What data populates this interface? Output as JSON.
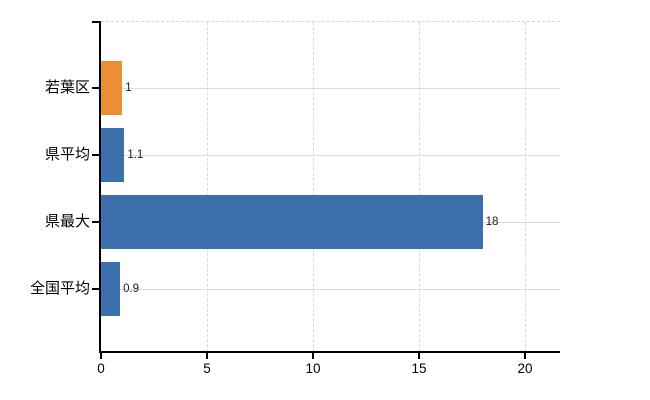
{
  "chart_data": {
    "type": "bar",
    "orientation": "horizontal",
    "title": "",
    "xlabel": "",
    "ylabel": "",
    "categories": [
      "若葉区",
      "県平均",
      "県最大",
      "全国平均"
    ],
    "values": [
      1,
      1.1,
      18,
      0.9
    ],
    "value_labels": [
      "1",
      "1.1",
      "18",
      "0.9"
    ],
    "bar_colors": [
      "#EC8E34",
      "#3C70AC",
      "#3C70AC",
      "#3C70AC"
    ],
    "xlim": [
      0,
      21.7
    ],
    "xticks": [
      0,
      5,
      10,
      15,
      20
    ],
    "xtick_labels": [
      "0",
      "5",
      "10",
      "15",
      "20"
    ],
    "grid": true,
    "legend": false
  },
  "colors": {
    "orange_bar": "#EC8E34",
    "blue_bar": "#3C70AC",
    "gridline": "#D8D8D8",
    "axis": "#000000",
    "text": "#000000",
    "background": "#FFFFFF"
  }
}
